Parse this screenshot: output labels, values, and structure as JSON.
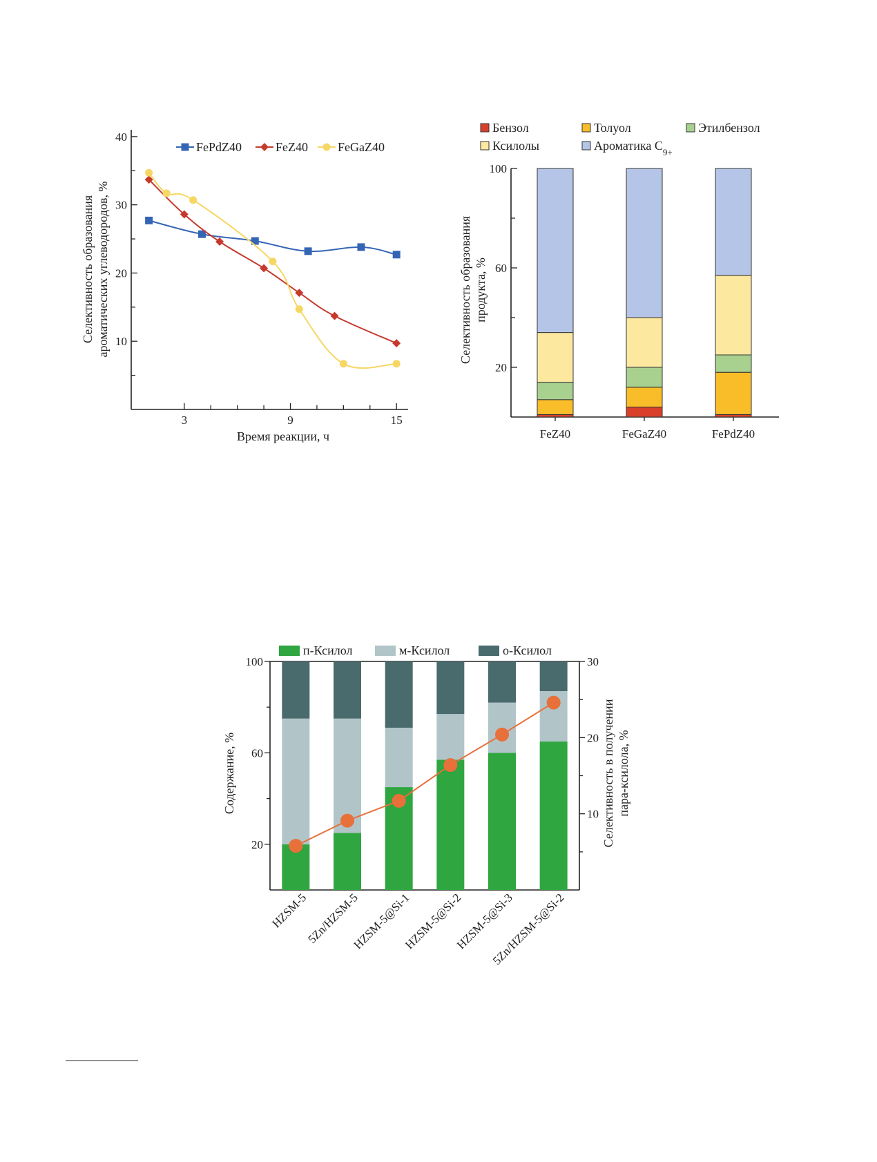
{
  "charts": [
    {
      "type": "line",
      "xlabel": "Время реакции, ч",
      "ylabel_lines": [
        "Селективность образования",
        "ароматических углеводородов, %"
      ],
      "xticks": [
        3,
        9,
        15
      ],
      "yticks": [
        10,
        20,
        30,
        40
      ],
      "xlim": [
        0,
        15.5
      ],
      "ylim": [
        0,
        41
      ],
      "legend_position": "top",
      "series": [
        {
          "name": "FePdZ40",
          "color": "#3465b5",
          "marker": "square",
          "x": [
            1,
            4,
            7,
            10,
            13,
            15
          ],
          "y": [
            27.7,
            25.7,
            24.7,
            23.2,
            23.8,
            22.7
          ]
        },
        {
          "name": "FeZ40",
          "color": "#c63a2e",
          "marker": "diamond",
          "x": [
            1,
            3,
            5,
            7.5,
            9.5,
            11.5,
            15
          ],
          "y": [
            33.7,
            28.6,
            24.6,
            20.7,
            17.1,
            13.7,
            9.7
          ]
        },
        {
          "name": "FeGaZ40",
          "color": "#f7d764",
          "marker": "circle",
          "x": [
            1,
            2,
            3.5,
            8,
            9.5,
            12,
            15
          ],
          "y": [
            34.7,
            31.7,
            30.7,
            21.7,
            14.7,
            6.7,
            6.7
          ]
        }
      ]
    },
    {
      "type": "bar",
      "stacked": true,
      "ylabel_lines": [
        "Селективность образования",
        "продукта, %"
      ],
      "categories": [
        "FeZ40",
        "FeGaZ40",
        "FePdZ40"
      ],
      "yticks": [
        20,
        60,
        100
      ],
      "ylim": [
        0,
        100
      ],
      "legend_position": "top",
      "series": [
        {
          "name": "Бензол",
          "color": "#d9402b",
          "values": [
            1,
            4,
            1
          ]
        },
        {
          "name": "Толуол",
          "color": "#f8bd28",
          "values": [
            6,
            8,
            17
          ]
        },
        {
          "name": "Этилбензол",
          "color": "#a8d08e",
          "values": [
            7,
            8,
            7
          ]
        },
        {
          "name": "Ксилолы",
          "color": "#fde8a0",
          "values": [
            20,
            20,
            32
          ]
        },
        {
          "name": "Ароматика C",
          "name_sub": "9+",
          "color": "#b5c5e7",
          "values": [
            66,
            60,
            43
          ]
        }
      ]
    },
    {
      "type": "bar",
      "stacked": true,
      "ylabel_left": "Содержание, %",
      "ylabel_right_lines": [
        "Селективность в получении",
        "пара-ксилола, %"
      ],
      "categories": [
        "HZSM-5",
        "5Zn/HZSM-5",
        "HZSM-5@Si-1",
        "HZSM-5@Si-2",
        "HZSM-5@Si-3",
        "5Zn/HZSM-5@Si-2"
      ],
      "yticks_left": [
        20,
        60,
        100
      ],
      "ylim_left": [
        0,
        100
      ],
      "yticks_right": [
        10,
        20,
        30
      ],
      "ylim_right": [
        0,
        30
      ],
      "legend_position": "top",
      "series": [
        {
          "name": "п-Ксилол",
          "color": "#2fa63f",
          "values": [
            20,
            25,
            45,
            57,
            60,
            65
          ]
        },
        {
          "name": "м-Ксилол",
          "color": "#b1c5c9",
          "values": [
            55,
            50,
            26,
            20,
            22,
            22
          ]
        },
        {
          "name": "о-Ксилол",
          "color": "#4a6b6d",
          "values": [
            25,
            25,
            29,
            23,
            18,
            13
          ]
        }
      ],
      "line_series": {
        "name": "Селективность в получении пара-ксилола",
        "color": "#e8703a",
        "axis": "right",
        "values": [
          5.8,
          9.1,
          11.7,
          16.4,
          20.4,
          24.6
        ]
      }
    }
  ],
  "chart_data": [
    {
      "type": "line",
      "xlabel": "Время реакции, ч",
      "ylabel": "Селективность образования ароматических углеводородов, %",
      "ylim": [
        0,
        41
      ],
      "series": [
        {
          "name": "FePdZ40",
          "x": [
            1,
            4,
            7,
            10,
            13,
            15
          ],
          "y": [
            27.7,
            25.7,
            24.7,
            23.2,
            23.8,
            22.7
          ]
        },
        {
          "name": "FeZ40",
          "x": [
            1,
            3,
            5,
            7.5,
            9.5,
            11.5,
            15
          ],
          "y": [
            33.7,
            28.6,
            24.6,
            20.7,
            17.1,
            13.7,
            9.7
          ]
        },
        {
          "name": "FeGaZ40",
          "x": [
            1,
            2,
            3.5,
            8,
            9.5,
            12,
            15
          ],
          "y": [
            34.7,
            31.7,
            30.7,
            21.7,
            14.7,
            6.7,
            6.7
          ]
        }
      ]
    },
    {
      "type": "bar",
      "stacked": true,
      "ylabel": "Селективность образования продукта, %",
      "categories": [
        "FeZ40",
        "FeGaZ40",
        "FePdZ40"
      ],
      "ylim": [
        0,
        100
      ],
      "series": [
        {
          "name": "Бензол",
          "values": [
            1,
            4,
            1
          ]
        },
        {
          "name": "Толуол",
          "values": [
            6,
            8,
            17
          ]
        },
        {
          "name": "Этилбензол",
          "values": [
            7,
            8,
            7
          ]
        },
        {
          "name": "Ксилолы",
          "values": [
            20,
            20,
            32
          ]
        },
        {
          "name": "Ароматика C9+",
          "values": [
            66,
            60,
            43
          ]
        }
      ]
    },
    {
      "type": "bar",
      "stacked": true,
      "ylabel": "Содержание, %",
      "y2label": "Селективность в получении пара-ксилола, %",
      "categories": [
        "HZSM-5",
        "5Zn/HZSM-5",
        "HZSM-5@Si-1",
        "HZSM-5@Si-2",
        "HZSM-5@Si-3",
        "5Zn/HZSM-5@Si-2"
      ],
      "ylim": [
        0,
        100
      ],
      "y2lim": [
        0,
        30
      ],
      "series": [
        {
          "name": "п-Ксилол",
          "values": [
            20,
            25,
            45,
            57,
            60,
            65
          ]
        },
        {
          "name": "м-Ксилол",
          "values": [
            55,
            50,
            26,
            20,
            22,
            22
          ]
        },
        {
          "name": "о-Ксилол",
          "values": [
            25,
            25,
            29,
            23,
            18,
            13
          ]
        },
        {
          "name": "Селективность в получении пара-ксилола",
          "values": [
            5.8,
            9.1,
            11.7,
            16.4,
            20.4,
            24.6
          ]
        }
      ]
    }
  ]
}
